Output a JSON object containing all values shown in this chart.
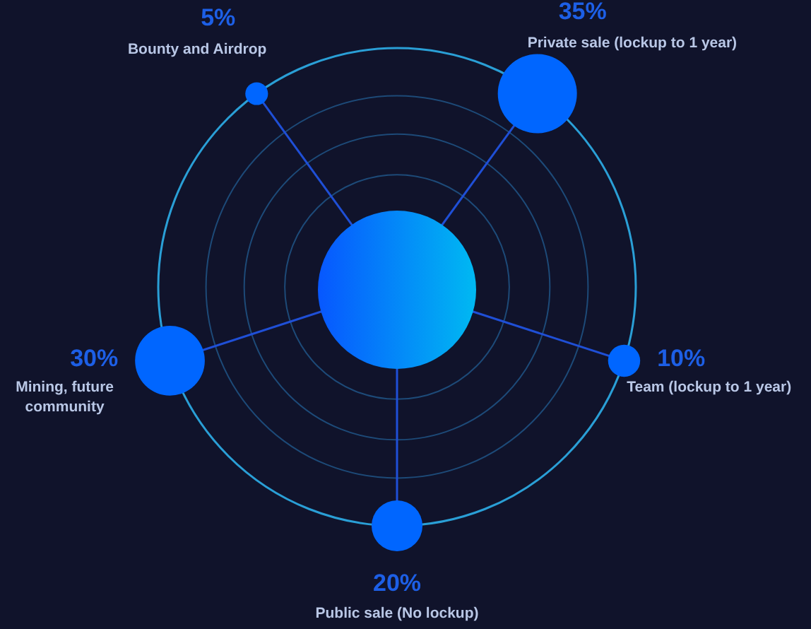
{
  "chart_data": {
    "type": "other",
    "categories": [
      "Bounty and Airdrop",
      "Private sale (lockup to 1 year)",
      "Team (lockup to 1 year)",
      "Public sale (No lockup)",
      "Mining, future community"
    ],
    "values": [
      5,
      35,
      10,
      20,
      30
    ],
    "value_labels": [
      "5%",
      "35%",
      "10%",
      "20%",
      "30%"
    ],
    "color": "#0066ff"
  }
}
